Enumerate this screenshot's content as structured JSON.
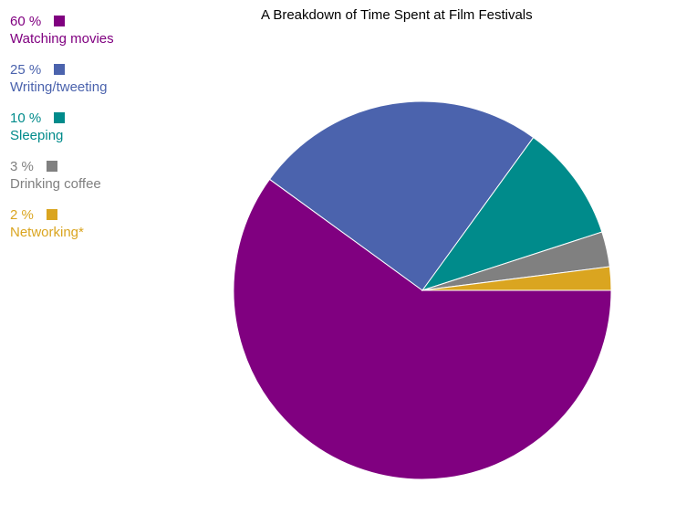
{
  "chart_data": {
    "type": "pie",
    "title": "A Breakdown of Time Spent at Film Festivals",
    "legend_position": "top-left",
    "slices": [
      {
        "label": "Watching movies",
        "value": 60,
        "value_label": "60 %",
        "color": "#800080"
      },
      {
        "label": "Writing/tweeting",
        "value": 25,
        "value_label": "25 %",
        "color": "#4b63ad"
      },
      {
        "label": "Sleeping",
        "value": 10,
        "value_label": "10 %",
        "color": "#008b8b"
      },
      {
        "label": "Drinking coffee",
        "value": 3,
        "value_label": "3 %",
        "color": "#808080"
      },
      {
        "label": "Networking*",
        "value": 2,
        "value_label": "2 %",
        "color": "#daa520"
      }
    ]
  }
}
